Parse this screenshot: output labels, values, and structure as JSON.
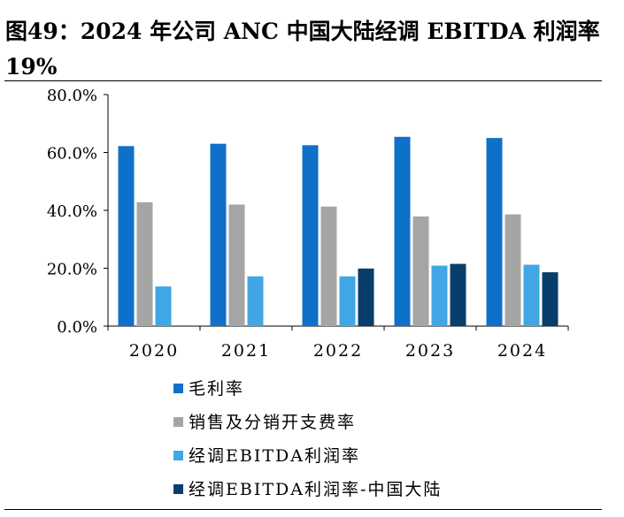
{
  "figure": {
    "title": "图49：2024 年公司 ANC 中国大陆经调 EBITDA 利润率 19%"
  },
  "chart_data": {
    "type": "bar",
    "categories": [
      "2020",
      "2021",
      "2022",
      "2023",
      "2024"
    ],
    "series": [
      {
        "name": "毛利率",
        "color": "#0f70c9",
        "values": [
          62.2,
          63.0,
          62.5,
          65.4,
          65.0
        ]
      },
      {
        "name": "销售及分销开支费率",
        "color": "#a5a5a5",
        "values": [
          42.8,
          42.0,
          41.3,
          37.9,
          38.6
        ]
      },
      {
        "name": "经调EBITDA利润率",
        "color": "#41a7e4",
        "values": [
          13.7,
          17.2,
          17.2,
          20.9,
          21.2
        ]
      },
      {
        "name": "经调EBITDA利润率-中国大陆",
        "color": "#083e6c",
        "values": [
          null,
          null,
          19.9,
          21.5,
          18.6
        ]
      }
    ],
    "y_ticks": [
      "0.0%",
      "20.0%",
      "40.0%",
      "60.0%",
      "80.0%"
    ],
    "ylim": [
      0,
      80
    ],
    "grid": false,
    "legend_position": "bottom-left"
  }
}
